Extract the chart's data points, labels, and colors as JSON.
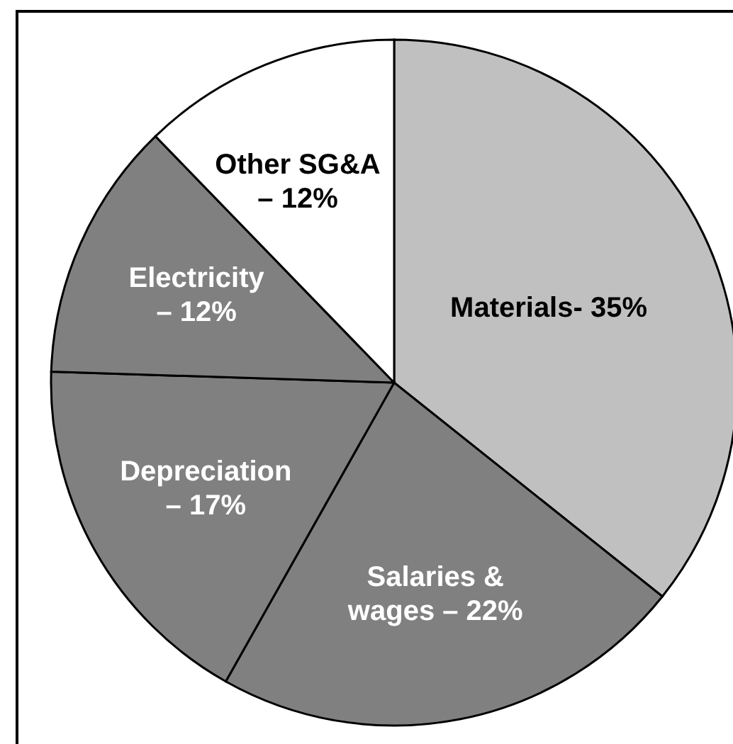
{
  "chart_data": {
    "type": "pie",
    "categories": [
      "Materials-",
      "Salaries & wages –",
      "Depreciation –",
      "Electricity –",
      "Other SG&A –"
    ],
    "values": [
      35,
      22,
      17,
      12,
      12
    ],
    "value_labels": [
      "35%",
      "22%",
      "17%",
      "12%",
      "12%"
    ],
    "colors": [
      "#c0c0c0",
      "#808080",
      "#808080",
      "#808080",
      "#ffffff"
    ]
  }
}
